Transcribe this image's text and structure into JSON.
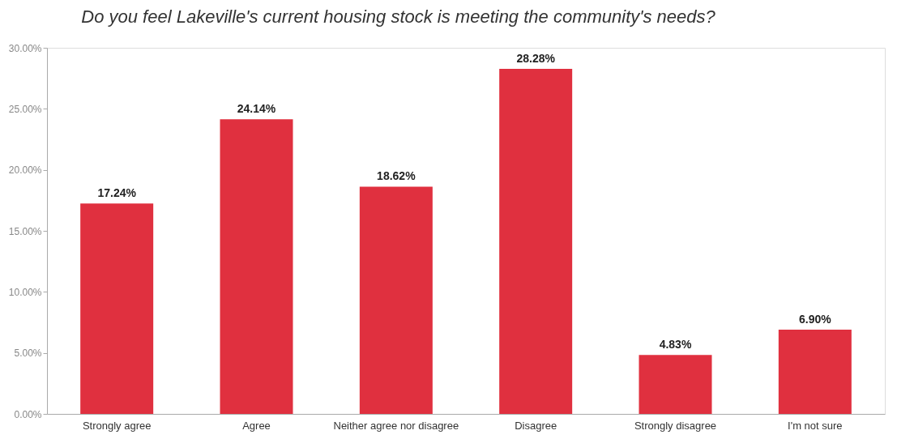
{
  "chart_data": {
    "type": "bar",
    "title": "Do you feel Lakeville's current housing stock is meeting the community's needs?",
    "categories": [
      "Strongly agree",
      "Agree",
      "Neither agree nor disagree",
      "Disagree",
      "Strongly disagree",
      "I'm not sure"
    ],
    "values": [
      17.24,
      24.14,
      18.62,
      28.28,
      4.83,
      6.9
    ],
    "value_labels": [
      "17.24%",
      "24.14%",
      "18.62%",
      "28.28%",
      "4.83%",
      "6.90%"
    ],
    "color": "#e0303f",
    "ylim": [
      0,
      30
    ],
    "yticks": [
      {
        "value": 0,
        "label": "0.00%"
      },
      {
        "value": 5,
        "label": "5.00%"
      },
      {
        "value": 10,
        "label": "10.00%"
      },
      {
        "value": 15,
        "label": "15.00%"
      },
      {
        "value": 20,
        "label": "20.00%"
      },
      {
        "value": 25,
        "label": "25.00%"
      },
      {
        "value": 30,
        "label": "30.00%"
      }
    ],
    "grid": false
  }
}
